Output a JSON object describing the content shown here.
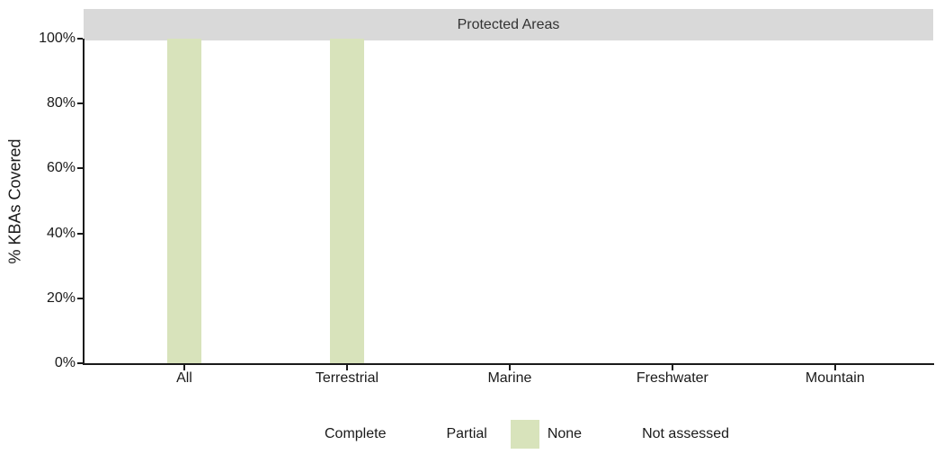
{
  "chart_data": {
    "type": "bar",
    "title": "Protected Areas",
    "ylabel": "% KBAs Covered",
    "categories": [
      "All",
      "Terrestrial",
      "Marine",
      "Freshwater",
      "Mountain"
    ],
    "series": [
      {
        "name": "Complete",
        "color": "#ffffff",
        "values": [
          0,
          0,
          0,
          0,
          0
        ]
      },
      {
        "name": "Partial",
        "color": "#ffffff",
        "values": [
          0,
          0,
          0,
          0,
          0
        ]
      },
      {
        "name": "None",
        "color": "#d8e3bb",
        "values": [
          100,
          100,
          0,
          0,
          0
        ]
      },
      {
        "name": "Not assessed",
        "color": "#ffffff",
        "values": [
          0,
          0,
          0,
          0,
          0
        ]
      }
    ],
    "ylim": [
      0,
      100
    ],
    "yticks": [
      {
        "label": "0%",
        "value": 0
      },
      {
        "label": "20%",
        "value": 20
      },
      {
        "label": "40%",
        "value": 40
      },
      {
        "label": "60%",
        "value": 60
      },
      {
        "label": "80%",
        "value": 80
      },
      {
        "label": "100%",
        "value": 100
      }
    ],
    "grid": false,
    "legend_position": "bottom",
    "colors": {
      "strip_bg": "#d9d9d9",
      "axis": "#1a1a1a",
      "bar_fill": "#d8e3bb"
    }
  }
}
